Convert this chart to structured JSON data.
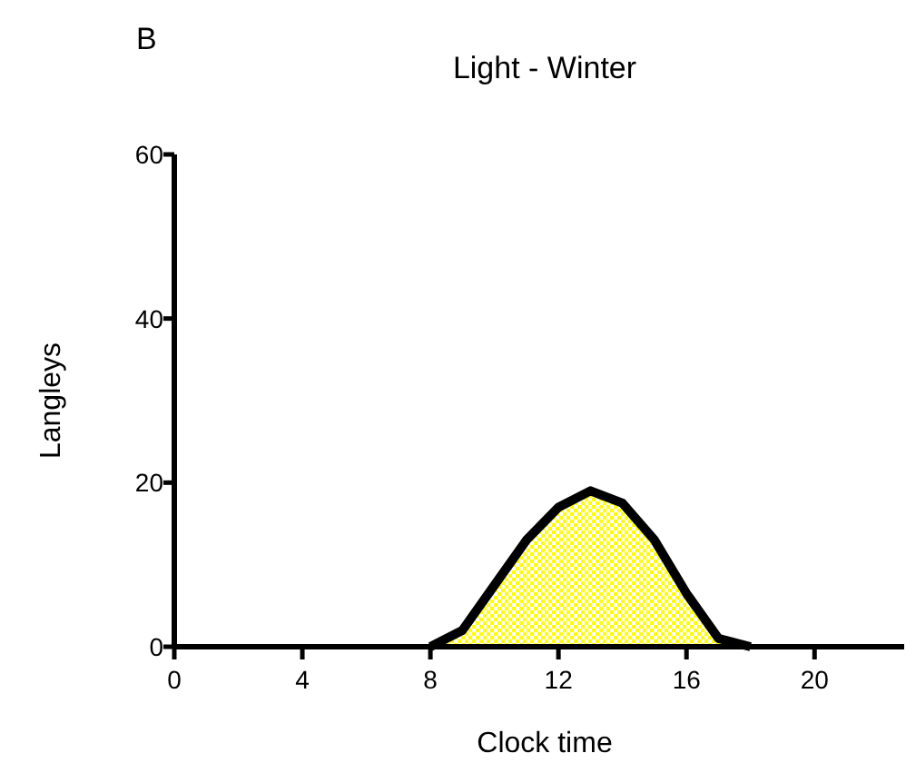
{
  "chart_data": {
    "type": "area",
    "title": "Light - Winter",
    "xlabel": "Clock time",
    "ylabel": "Langleys",
    "annotations": [
      "B"
    ],
    "x": [
      8,
      9,
      10,
      11,
      12,
      13,
      14,
      15,
      16,
      17,
      18
    ],
    "series": [
      {
        "color": "#ffff00",
        "values": [
          0,
          2,
          7.5,
          13,
          17,
          19,
          17.5,
          13,
          6.5,
          1,
          0
        ]
      }
    ],
    "xlim": [
      0,
      22.8
    ],
    "xticks": [
      0,
      4,
      8,
      12,
      16,
      20
    ],
    "ylim": [
      0,
      60
    ],
    "yticks": [
      0,
      20,
      40,
      60
    ],
    "grid": false
  }
}
